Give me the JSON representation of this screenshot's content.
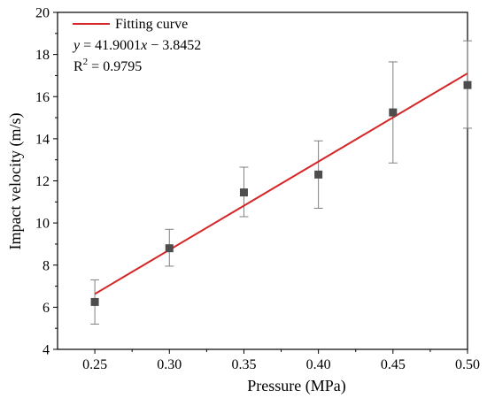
{
  "chart_data": {
    "type": "scatter",
    "title": "",
    "xlabel": "Pressure (MPa)",
    "ylabel": "Impact velocity (m/s)",
    "xlim": [
      0.225,
      0.5
    ],
    "ylim": [
      4,
      20
    ],
    "x_ticks": [
      0.25,
      0.3,
      0.35,
      0.4,
      0.45,
      0.5
    ],
    "x_tick_labels": [
      "0.25",
      "0.30",
      "0.35",
      "0.40",
      "0.45",
      "0.50"
    ],
    "y_ticks": [
      4,
      6,
      8,
      10,
      12,
      14,
      16,
      18,
      20
    ],
    "y_tick_labels": [
      "4",
      "6",
      "8",
      "10",
      "12",
      "14",
      "16",
      "18",
      "20"
    ],
    "grid": false,
    "legend_position": "top-left",
    "series": [
      {
        "type": "scatter",
        "marker": "square",
        "color": "#4d4d4d",
        "error_color": "#808080",
        "x": [
          0.25,
          0.3,
          0.35,
          0.4,
          0.45,
          0.5
        ],
        "y": [
          6.25,
          8.8,
          11.45,
          12.3,
          15.25,
          16.55
        ],
        "err_low": [
          5.2,
          7.95,
          10.3,
          10.7,
          12.85,
          14.5
        ],
        "err_high": [
          7.3,
          9.7,
          12.65,
          13.9,
          17.65,
          18.65
        ]
      },
      {
        "name": "Fitting curve",
        "type": "line",
        "color": "#d62728",
        "slope": 41.9001,
        "intercept": -3.8452,
        "x_range": [
          0.25,
          0.5
        ]
      }
    ],
    "annotations": {
      "equation_y": "y",
      "equation_x": "x",
      "equation_eq": " = 41.9001",
      "equation_rest": " − 3.8452",
      "r2_base": "R",
      "r2_sup": "2",
      "r2_value": " = 0.9795"
    }
  }
}
